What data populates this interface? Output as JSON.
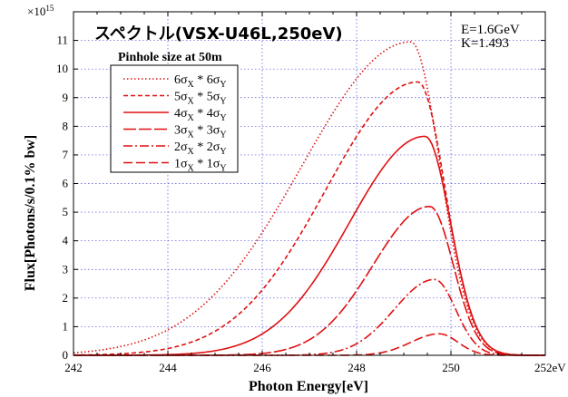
{
  "chart_data": {
    "type": "line",
    "title": "スペクトル(VSX-U46L,250eV)",
    "params": [
      "E=1.6GeV",
      "K=1.493"
    ],
    "xlabel": "Photon Energy[eV]",
    "ylabel": "Flux[Photons/s/0.1% bw]",
    "y_exponent_label": "×10",
    "y_exponent": "15",
    "xlim": [
      242,
      252
    ],
    "ylim": [
      0,
      12
    ],
    "xticks": [
      242,
      244,
      246,
      248,
      250,
      252
    ],
    "xtick_labels": [
      "242",
      "244",
      "246",
      "248",
      "250",
      "252eV"
    ],
    "yticks": [
      0,
      1,
      2,
      3,
      4,
      5,
      6,
      7,
      8,
      9,
      10,
      11,
      12
    ],
    "ytick_labels": [
      "0",
      "1",
      "2",
      "3",
      "4",
      "5",
      "6",
      "7",
      "8",
      "9",
      "10",
      "11",
      "12"
    ],
    "grid": true,
    "legend_title": "Pinhole size at 50m",
    "legend_position": "upper-left",
    "line_color": "#e01010",
    "series": [
      {
        "name": "6σX * 6σY",
        "label_parts": [
          "6",
          "X",
          " * 6",
          "Y"
        ],
        "dash": "dotted",
        "peak_x": 249.15,
        "peak_y": 10.95,
        "sigma_left": 2.3,
        "sigma_right": 0.62,
        "x": [
          242,
          243,
          244,
          245,
          246,
          247,
          248,
          248.5,
          249,
          249.15,
          249.5,
          250,
          250.5,
          251,
          252
        ],
        "y": [
          0.0,
          0.17,
          0.64,
          1.85,
          3.75,
          6.0,
          8.9,
          10.1,
          10.85,
          10.95,
          9.3,
          4.9,
          1.6,
          0.3,
          0.05
        ]
      },
      {
        "name": "5σX * 5σY",
        "label_parts": [
          "5",
          "X",
          " * 5",
          "Y"
        ],
        "dash": "short",
        "peak_x": 249.3,
        "peak_y": 9.55,
        "sigma_left": 1.95,
        "sigma_right": 0.58,
        "x": [
          242,
          243,
          244,
          245,
          246,
          247,
          248,
          248.5,
          249,
          249.3,
          249.5,
          250,
          250.5,
          251,
          252
        ],
        "y": [
          0.0,
          0.05,
          0.25,
          0.8,
          2.0,
          3.9,
          6.6,
          7.9,
          9.1,
          9.55,
          9.0,
          5.6,
          2.0,
          0.4,
          0.05
        ]
      },
      {
        "name": "4σX * 4σY",
        "label_parts": [
          "4",
          "X",
          " * 4",
          "Y"
        ],
        "dash": "solid",
        "peak_x": 249.45,
        "peak_y": 7.65,
        "sigma_left": 1.6,
        "sigma_right": 0.54,
        "x": [
          242,
          243,
          244,
          245,
          246,
          247,
          248,
          248.5,
          249,
          249.45,
          249.7,
          250,
          250.5,
          251,
          252
        ],
        "y": [
          0.0,
          0.02,
          0.08,
          0.3,
          0.8,
          1.9,
          4.2,
          5.5,
          7.0,
          7.65,
          7.0,
          5.3,
          2.0,
          0.4,
          0.05
        ]
      },
      {
        "name": "3σX * 3σY",
        "label_parts": [
          "3",
          "X",
          " * 3",
          "Y"
        ],
        "dash": "long",
        "peak_x": 249.55,
        "peak_y": 5.2,
        "sigma_left": 1.2,
        "sigma_right": 0.5,
        "x": [
          242,
          243,
          244,
          245,
          246,
          247,
          248,
          248.5,
          249,
          249.55,
          249.8,
          250,
          250.5,
          251,
          252
        ],
        "y": [
          0.0,
          0.0,
          0.02,
          0.05,
          0.18,
          0.55,
          1.7,
          2.7,
          4.3,
          5.2,
          4.6,
          3.7,
          1.3,
          0.3,
          0.03
        ]
      },
      {
        "name": "2σX * 2σY",
        "label_parts": [
          "2",
          "X",
          " * 2",
          "Y"
        ],
        "dash": "dashdot",
        "peak_x": 249.65,
        "peak_y": 2.65,
        "sigma_left": 0.85,
        "sigma_right": 0.45,
        "x": [
          242,
          244,
          246,
          247,
          248,
          248.5,
          249,
          249.65,
          250,
          250.5,
          251,
          252
        ],
        "y": [
          0.0,
          0.0,
          0.03,
          0.12,
          0.45,
          0.9,
          1.7,
          2.65,
          2.1,
          0.8,
          0.15,
          0.02
        ]
      },
      {
        "name": "1σX * 1σY",
        "label_parts": [
          "1",
          "X",
          " * 1",
          "Y"
        ],
        "dash": "longdash",
        "peak_x": 249.75,
        "peak_y": 0.75,
        "sigma_left": 0.6,
        "sigma_right": 0.4,
        "x": [
          242,
          246,
          248,
          248.5,
          249,
          249.75,
          250,
          250.5,
          251,
          252
        ],
        "y": [
          0.0,
          0.0,
          0.05,
          0.15,
          0.4,
          0.75,
          0.65,
          0.3,
          0.05,
          0.0
        ]
      }
    ]
  }
}
